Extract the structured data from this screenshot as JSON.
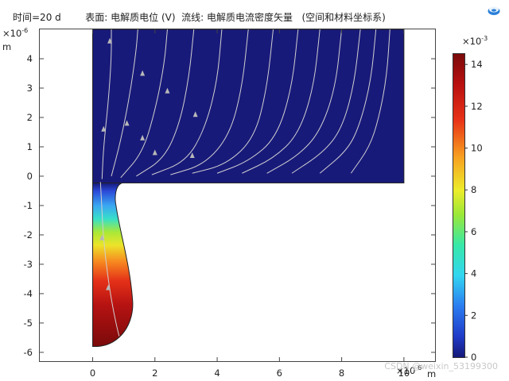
{
  "header": {
    "time_label": "时间=20 d",
    "surface_label": "表面: 电解质电位 (V)",
    "streamline_label": "流线: 电解质电流密度矢量",
    "frame_label": "(空间和材料坐标系)"
  },
  "watermark": "CSDN @weixin_53199300",
  "logo_icon": "comsol-logo-icon",
  "chart_data": {
    "type": "surface-streamline",
    "xlim": [
      -1.7,
      11.0
    ],
    "ylim": [
      -6.3,
      5.0
    ],
    "x_ticks": [
      0,
      2,
      4,
      6,
      8,
      10
    ],
    "y_ticks": [
      -6,
      -5,
      -4,
      -3,
      -2,
      -1,
      0,
      1,
      2,
      3,
      4
    ],
    "x_scale_label": "×10",
    "x_scale_exp": "-6",
    "x_unit": "m",
    "y_scale_label": "×10",
    "y_scale_exp": "-6",
    "y_unit": "m",
    "colorbar": {
      "min": 0,
      "max": 14.5,
      "ticks": [
        0,
        2,
        4,
        6,
        8,
        10,
        12,
        14
      ],
      "scale_label": "×10",
      "scale_exp": "-3",
      "colormap": "rainbow"
    },
    "domain": {
      "upper_block": {
        "x": [
          0,
          10
        ],
        "y": [
          -0.23,
          5.0
        ],
        "value": 0
      },
      "notch": {
        "x": [
          0,
          1.0
        ],
        "y": [
          -5.8,
          -0.23
        ]
      }
    },
    "colors": {
      "background_field": "#181a7a",
      "streamline": "#d0d0d0",
      "arrow": "#b8b8b8"
    }
  }
}
